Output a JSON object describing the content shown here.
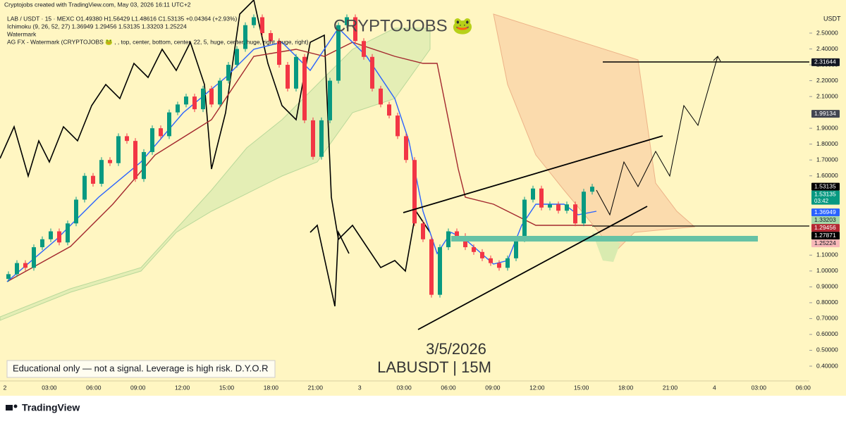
{
  "header": {
    "credit": "Cryptojobs created with TradingView.com, May 03, 2026 16:11 UTC+2",
    "symbol_line": "LAB / USDT · 15 · MEXC  O1.49380 H1.56429 L1.48616 C1.53135 +0.04364 (+2.93%)",
    "ichimoku_line": "Ichimoku (9, 26, 52, 27)  1.36949  1.29456  1.53135  1.33203  1.25224",
    "watermark_line": "Watermark",
    "agfx_line": "AG FX - Watermark (CRYPTOJOBS 🐸 , , top, center, bottom, center, 22, 5, huge, center, huge, right, huge, right)"
  },
  "watermark": "CRYPTOJOBS 🐸",
  "date_text": "3/5/2026",
  "pair_text": "LABUSDT | 15M",
  "disclaimer": "Educational only — not a signal. Leverage is high risk. D.Y.O.R",
  "currency": "USDT",
  "brand": "TradingView",
  "price_axis": [
    {
      "value": 2.5,
      "label": "2.50000"
    },
    {
      "value": 2.4,
      "label": "2.40000"
    },
    {
      "value": 2.3,
      "label": "2.30000"
    },
    {
      "value": 2.2,
      "label": "2.20000"
    },
    {
      "value": 2.1,
      "label": "2.10000"
    },
    {
      "value": 1.9,
      "label": "1.90000"
    },
    {
      "value": 1.8,
      "label": "1.80000"
    },
    {
      "value": 1.7,
      "label": "1.70000"
    },
    {
      "value": 1.6,
      "label": "1.60000"
    },
    {
      "value": 1.1,
      "label": "1.10000"
    },
    {
      "value": 1.0,
      "label": "1.00000"
    },
    {
      "value": 0.9,
      "label": "0.90000"
    },
    {
      "value": 0.8,
      "label": "0.80000"
    },
    {
      "value": 0.7,
      "label": "0.70000"
    },
    {
      "value": 0.6,
      "label": "0.60000"
    },
    {
      "value": 0.5,
      "label": "0.50000"
    },
    {
      "value": 0.4,
      "label": "0.40000"
    }
  ],
  "time_axis": [
    "2",
    "03:00",
    "06:00",
    "09:00",
    "12:00",
    "15:00",
    "18:00",
    "21:00",
    "3",
    "03:00",
    "06:00",
    "09:00",
    "12:00",
    "15:00",
    "18:00",
    "21:00",
    "4",
    "03:00",
    "06:00"
  ],
  "price_tags": [
    {
      "value": 2.31644,
      "color": "#131722"
    },
    {
      "value": 1.99134,
      "color": "#434651"
    },
    {
      "value": 1.53135,
      "color": "#000000"
    },
    {
      "value": 1.53135,
      "color": "#089981",
      "countdown": "03:42"
    },
    {
      "value": 1.36949,
      "color": "#2962ff"
    },
    {
      "value": 1.33203,
      "color": "#a5d6a7"
    },
    {
      "value": 1.29456,
      "color": "#b22833"
    },
    {
      "value": 1.27871,
      "color": "#000000"
    },
    {
      "value": 1.25224,
      "color": "#f7b8b8"
    }
  ],
  "first_open": 0.95,
  "closes": [
    0.98,
    1.05,
    1.02,
    1.15,
    1.2,
    1.25,
    1.18,
    1.3,
    1.45,
    1.6,
    1.55,
    1.7,
    1.68,
    1.85,
    1.82,
    1.58,
    1.75,
    1.9,
    1.85,
    2.0,
    2.05,
    2.1,
    2.02,
    2.15,
    2.05,
    2.2,
    2.3,
    2.4,
    2.55,
    2.6,
    2.5,
    2.45,
    2.3,
    2.15,
    2.35,
    1.95,
    1.72,
    1.95,
    2.2,
    2.55,
    2.6,
    2.45,
    2.35,
    2.15,
    2.05,
    1.98,
    1.85,
    1.7,
    1.3,
    1.2,
    0.85,
    1.15,
    1.25,
    1.22,
    1.15,
    1.12,
    1.08,
    1.05,
    1.02,
    1.08,
    1.2,
    1.45,
    1.52,
    1.4,
    1.42,
    1.38,
    1.42,
    1.3,
    1.5,
    1.53135
  ]
}
